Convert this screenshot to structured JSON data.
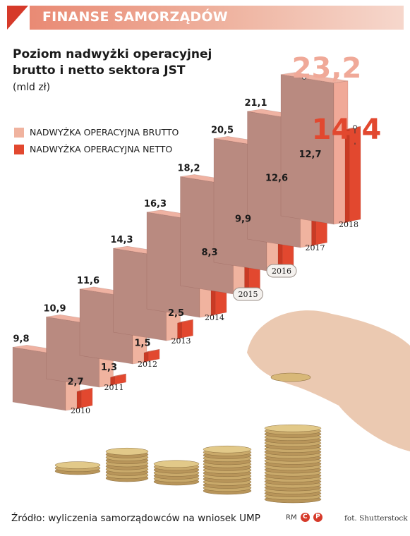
{
  "banner": {
    "text": "FINANSE SAMORZĄDÓW"
  },
  "title": "Poziom nadwyżki operacyjnej brutto i netto sektora JST",
  "unit": "(mld zł)",
  "colors": {
    "brutto_front": "#b98a80",
    "brutto_side": "#f0b39f",
    "brutto_top": "#efb2a2",
    "netto_front": "#e2482f",
    "netto_side": "#c93a24",
    "netto_top": "#ef7a62",
    "accent": "#d63a2a",
    "highlight_brutto": "#f0a998",
    "highlight_netto": "#e2482f"
  },
  "chart_data": {
    "type": "bar",
    "categories": [
      "2010",
      "2011",
      "2012",
      "2013",
      "2014",
      "2015",
      "2016",
      "2017",
      "2018"
    ],
    "series": [
      {
        "name": "NADWYŻKA OPERACYJNA BRUTTO",
        "values": [
          9.8,
          10.9,
          11.6,
          14.3,
          16.3,
          18.2,
          20.5,
          21.1,
          23.2
        ]
      },
      {
        "name": "NADWYŻKA OPERACYJNA NETTO",
        "values": [
          2.7,
          1.3,
          1.5,
          2.5,
          8.3,
          9.9,
          12.6,
          12.7,
          14.4
        ]
      }
    ],
    "value_labels_brutto": [
      "9,8",
      "10,9",
      "11,6",
      "14,3",
      "16,3",
      "18,2",
      "20,5",
      "21,1",
      "23,2"
    ],
    "value_labels_netto": [
      "2,7",
      "1,3",
      "1,5",
      "2,5",
      "8,3",
      "9,9",
      "12,6",
      "12,7",
      "14,4"
    ],
    "legend_placement": "top-left",
    "grid": false
  },
  "source": "Źródło: wyliczenia samorządowców na wniosek UMP",
  "copyright": {
    "prefix": "RM",
    "c": "C",
    "p": "P"
  },
  "photo_credit": "fot. Shutterstock"
}
